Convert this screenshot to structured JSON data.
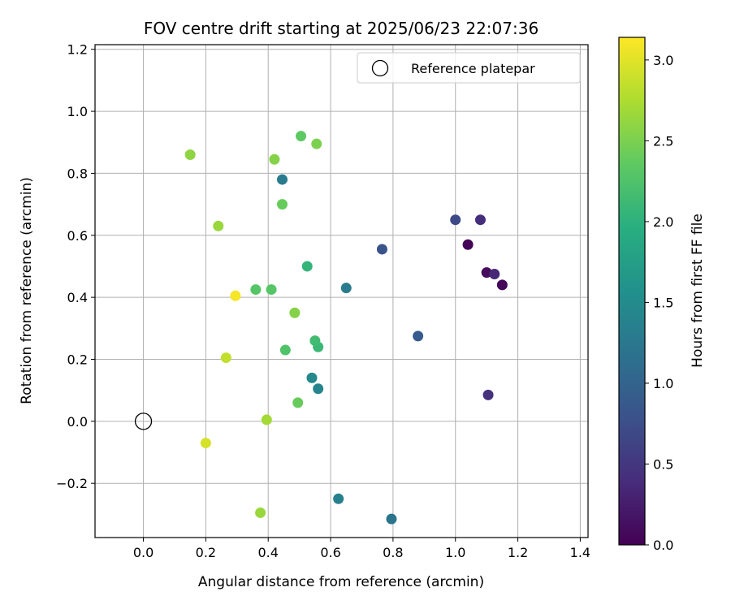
{
  "chart_data": {
    "type": "scatter",
    "title": "FOV centre drift starting at 2025/06/23 22:07:36",
    "xlabel": "Angular distance from reference (arcmin)",
    "ylabel": "Rotation from reference (arcmin)",
    "xlim": [
      -0.155,
      1.425
    ],
    "ylim": [
      -0.375,
      1.215
    ],
    "x_ticks": [
      0.0,
      0.2,
      0.4,
      0.6,
      0.8,
      1.0,
      1.2,
      1.4
    ],
    "x_tick_labels": [
      "0.0",
      "0.2",
      "0.4",
      "0.6",
      "0.8",
      "1.0",
      "1.2",
      "1.4"
    ],
    "y_ticks": [
      -0.2,
      0.0,
      0.2,
      0.4,
      0.6,
      0.8,
      1.0,
      1.2
    ],
    "y_tick_labels": [
      "−0.2",
      "0.0",
      "0.2",
      "0.4",
      "0.6",
      "0.8",
      "1.0",
      "1.2"
    ],
    "grid": true,
    "legend": {
      "position": "top-right",
      "entries": [
        "Reference platepar"
      ]
    },
    "reference_point": {
      "x": 0.0,
      "y": 0.0,
      "name": "Reference platepar"
    },
    "colorbar": {
      "label": "Hours from first FF file",
      "colormap": "viridis",
      "range": [
        0.0,
        3.14
      ],
      "ticks": [
        0.0,
        0.5,
        1.0,
        1.5,
        2.0,
        2.5,
        3.0
      ],
      "tick_labels": [
        "0.0",
        "0.5",
        "1.0",
        "1.5",
        "2.0",
        "2.5",
        "3.0"
      ]
    },
    "points": [
      {
        "x": 1.04,
        "y": 0.57,
        "t": 0.02
      },
      {
        "x": 1.15,
        "y": 0.44,
        "t": 0.05
      },
      {
        "x": 1.1,
        "y": 0.48,
        "t": 0.1
      },
      {
        "x": 1.125,
        "y": 0.475,
        "t": 0.35
      },
      {
        "x": 1.08,
        "y": 0.65,
        "t": 0.4
      },
      {
        "x": 1.105,
        "y": 0.085,
        "t": 0.45
      },
      {
        "x": 1.0,
        "y": 0.65,
        "t": 0.7
      },
      {
        "x": 0.765,
        "y": 0.555,
        "t": 0.8
      },
      {
        "x": 0.88,
        "y": 0.275,
        "t": 0.9
      },
      {
        "x": 0.795,
        "y": -0.315,
        "t": 1.2
      },
      {
        "x": 0.65,
        "y": 0.43,
        "t": 1.3
      },
      {
        "x": 0.445,
        "y": 0.78,
        "t": 1.3
      },
      {
        "x": 0.625,
        "y": -0.25,
        "t": 1.35
      },
      {
        "x": 0.56,
        "y": 0.105,
        "t": 1.4
      },
      {
        "x": 0.54,
        "y": 0.14,
        "t": 1.45
      },
      {
        "x": 0.525,
        "y": 0.5,
        "t": 2.05
      },
      {
        "x": 0.56,
        "y": 0.24,
        "t": 2.1
      },
      {
        "x": 0.55,
        "y": 0.26,
        "t": 2.15
      },
      {
        "x": 0.455,
        "y": 0.23,
        "t": 2.25
      },
      {
        "x": 0.36,
        "y": 0.425,
        "t": 2.3
      },
      {
        "x": 0.41,
        "y": 0.425,
        "t": 2.3
      },
      {
        "x": 0.505,
        "y": 0.92,
        "t": 2.35
      },
      {
        "x": 0.445,
        "y": 0.7,
        "t": 2.4
      },
      {
        "x": 0.495,
        "y": 0.06,
        "t": 2.4
      },
      {
        "x": 0.555,
        "y": 0.895,
        "t": 2.5
      },
      {
        "x": 0.42,
        "y": 0.845,
        "t": 2.55
      },
      {
        "x": 0.485,
        "y": 0.35,
        "t": 2.55
      },
      {
        "x": 0.15,
        "y": 0.86,
        "t": 2.6
      },
      {
        "x": 0.24,
        "y": 0.63,
        "t": 2.65
      },
      {
        "x": 0.375,
        "y": -0.295,
        "t": 2.65
      },
      {
        "x": 0.395,
        "y": 0.005,
        "t": 2.7
      },
      {
        "x": 0.265,
        "y": 0.205,
        "t": 2.85
      },
      {
        "x": 0.2,
        "y": -0.07,
        "t": 2.95
      },
      {
        "x": 0.295,
        "y": 0.405,
        "t": 3.1
      }
    ]
  }
}
